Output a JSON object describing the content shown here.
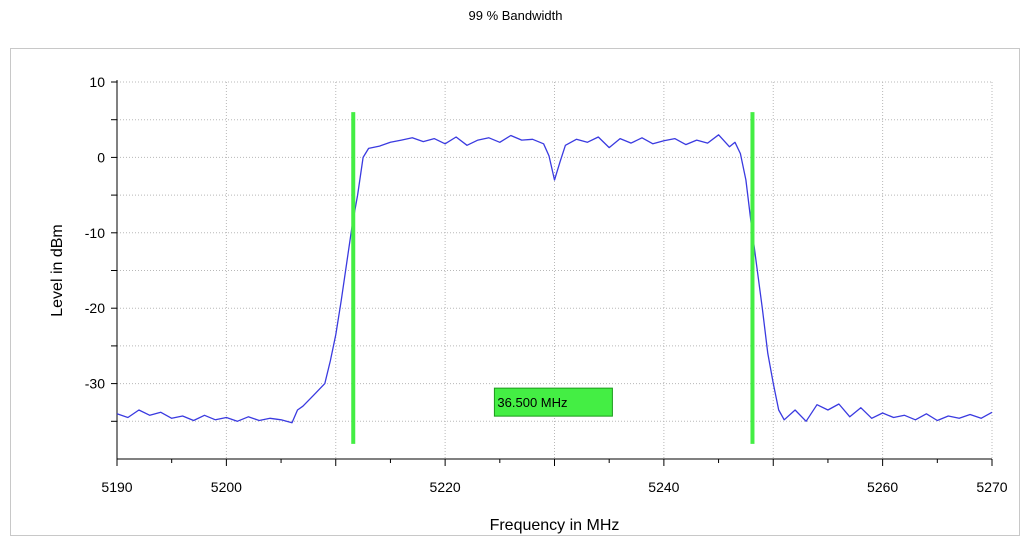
{
  "chart_data": {
    "type": "line",
    "title": "99 % Bandwidth",
    "xlabel": "Frequency in MHz",
    "ylabel": "Level in dBm",
    "xlim": [
      5190,
      5270
    ],
    "ylim": [
      -40,
      10
    ],
    "x_ticks": [
      5190,
      5200,
      5220,
      5240,
      5260,
      5270
    ],
    "y_ticks": [
      10,
      0,
      -10,
      -20,
      -30
    ],
    "grid": true,
    "series": [
      {
        "color": "#3a3ae0",
        "points": [
          [
            5190,
            -34.0
          ],
          [
            5191,
            -34.5
          ],
          [
            5192,
            -33.5
          ],
          [
            5193,
            -34.2
          ],
          [
            5194,
            -33.8
          ],
          [
            5195,
            -34.6
          ],
          [
            5196,
            -34.3
          ],
          [
            5197,
            -34.9
          ],
          [
            5198,
            -34.2
          ],
          [
            5199,
            -34.8
          ],
          [
            5200,
            -34.5
          ],
          [
            5201,
            -35.0
          ],
          [
            5202,
            -34.4
          ],
          [
            5203,
            -34.9
          ],
          [
            5204,
            -34.6
          ],
          [
            5205,
            -34.8
          ],
          [
            5206,
            -35.2
          ],
          [
            5206.5,
            -33.5
          ],
          [
            5207,
            -33.0
          ],
          [
            5208,
            -31.5
          ],
          [
            5209,
            -30.0
          ],
          [
            5209.5,
            -27.0
          ],
          [
            5210,
            -23.5
          ],
          [
            5210.5,
            -19.0
          ],
          [
            5211,
            -14.0
          ],
          [
            5211.5,
            -9.0
          ],
          [
            5212,
            -5.0
          ],
          [
            5212.5,
            0.0
          ],
          [
            5213,
            1.2
          ],
          [
            5214,
            1.5
          ],
          [
            5215,
            2.0
          ],
          [
            5216,
            2.3
          ],
          [
            5217,
            2.6
          ],
          [
            5218,
            2.1
          ],
          [
            5219,
            2.5
          ],
          [
            5220,
            1.8
          ],
          [
            5221,
            2.7
          ],
          [
            5222,
            1.6
          ],
          [
            5223,
            2.3
          ],
          [
            5224,
            2.6
          ],
          [
            5225,
            2.0
          ],
          [
            5226,
            2.9
          ],
          [
            5227,
            2.3
          ],
          [
            5228,
            2.4
          ],
          [
            5229,
            1.8
          ],
          [
            5229.5,
            0.2
          ],
          [
            5230,
            -3.0
          ],
          [
            5230.5,
            -0.6
          ],
          [
            5231,
            1.6
          ],
          [
            5232,
            2.4
          ],
          [
            5233,
            2.0
          ],
          [
            5234,
            2.7
          ],
          [
            5235,
            1.3
          ],
          [
            5236,
            2.5
          ],
          [
            5237,
            1.9
          ],
          [
            5238,
            2.6
          ],
          [
            5239,
            1.8
          ],
          [
            5240,
            2.2
          ],
          [
            5241,
            2.5
          ],
          [
            5242,
            1.7
          ],
          [
            5243,
            2.3
          ],
          [
            5244,
            1.9
          ],
          [
            5245,
            3.0
          ],
          [
            5246,
            1.4
          ],
          [
            5246.5,
            2.0
          ],
          [
            5247,
            0.5
          ],
          [
            5247.5,
            -3.0
          ],
          [
            5248,
            -9.0
          ],
          [
            5248.5,
            -14.5
          ],
          [
            5249,
            -20.0
          ],
          [
            5249.5,
            -26.0
          ],
          [
            5250,
            -30.0
          ],
          [
            5250.5,
            -33.5
          ],
          [
            5251,
            -34.8
          ],
          [
            5252,
            -33.5
          ],
          [
            5253,
            -35.0
          ],
          [
            5254,
            -32.8
          ],
          [
            5255,
            -33.5
          ],
          [
            5256,
            -32.7
          ],
          [
            5257,
            -34.4
          ],
          [
            5258,
            -33.2
          ],
          [
            5259,
            -34.6
          ],
          [
            5260,
            -33.9
          ],
          [
            5261,
            -34.5
          ],
          [
            5262,
            -34.2
          ],
          [
            5263,
            -34.8
          ],
          [
            5264,
            -34.0
          ],
          [
            5265,
            -34.9
          ],
          [
            5266,
            -34.3
          ],
          [
            5267,
            -34.6
          ],
          [
            5268,
            -34.1
          ],
          [
            5269,
            -34.6
          ],
          [
            5270,
            -33.8
          ]
        ]
      }
    ],
    "markers": {
      "color": "#44ee44",
      "lines": [
        {
          "x": 5211.6,
          "y_from": -38.0,
          "y_to": 6.0
        },
        {
          "x": 5248.1,
          "y_from": -38.0,
          "y_to": 6.0
        }
      ],
      "label": {
        "text": "36.500 MHz",
        "x": 5229.9,
        "y": -31.0
      }
    }
  }
}
